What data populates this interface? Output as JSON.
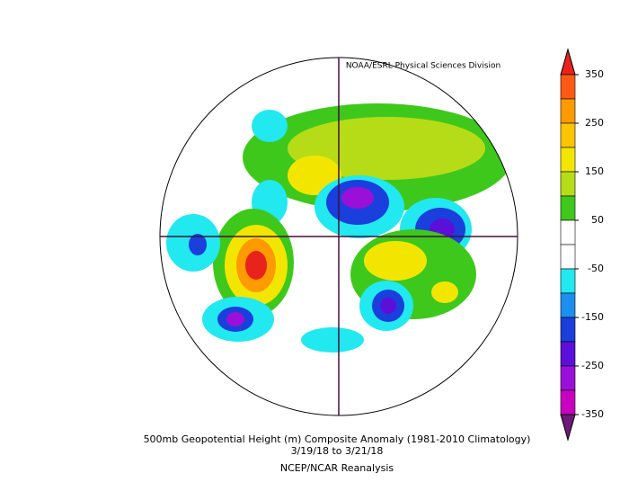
{
  "header": {
    "credit": "NOAA/ESRL Physical Sciences Division"
  },
  "colorbar": {
    "ticks": [
      350,
      250,
      150,
      50,
      -50,
      -150,
      -250,
      -350
    ],
    "colors": [
      "#e8231b",
      "#ff5a14",
      "#ff9a00",
      "#ffc400",
      "#f2e600",
      "#b6dc17",
      "#3ec81c",
      "#ffffff",
      "#ffffff",
      "#22e8f0",
      "#1c8ff0",
      "#1a3fdc",
      "#5a10d8",
      "#9b10d8",
      "#c800c0",
      "#6e1a78"
    ]
  },
  "footer": {
    "title": "500mb Geopotential Height (m) Composite Anomaly (1981-2010 Climatology)",
    "dates": "3/19/18   to 3/21/18",
    "source": "NCEP/NCAR Reanalysis"
  }
}
